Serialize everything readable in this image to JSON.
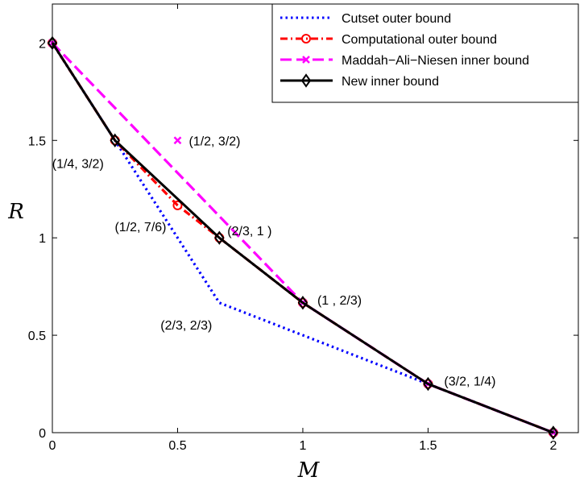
{
  "chart_data": {
    "type": "line",
    "title": "",
    "xlabel": "M",
    "ylabel": "R",
    "xlim": [
      0,
      2.1
    ],
    "ylim": [
      0,
      2.2
    ],
    "xticks": [
      "0",
      "0.5",
      "1",
      "1.5",
      "2"
    ],
    "yticks": [
      "0",
      "0.5",
      "1",
      "1.5",
      "2"
    ],
    "grid": false,
    "legend_position": "top-right",
    "series": [
      {
        "name": "Cutset outer bound",
        "color": "#0000ff",
        "style": "dotted",
        "marker": "none",
        "x": [
          0,
          0.25,
          0.6667,
          1.5,
          2
        ],
        "y": [
          2,
          1.5,
          0.6667,
          0.25,
          0
        ]
      },
      {
        "name": "Computational outer bound",
        "color": "#ff0000",
        "style": "dashdot",
        "marker": "circle",
        "x": [
          0,
          0.25,
          0.5,
          0.6667,
          1,
          1.5,
          2
        ],
        "y": [
          2,
          1.5,
          1.1667,
          1,
          0.6667,
          0.25,
          0
        ]
      },
      {
        "name": "Maddah−Ali−Niesen inner bound",
        "color": "#ff00ff",
        "style": "dashed",
        "marker": "x",
        "x": [
          0,
          1,
          1.5,
          2
        ],
        "y": [
          2,
          0.6667,
          0.25,
          0
        ],
        "extra_points": [
          {
            "x": 0.5,
            "y": 1.5
          }
        ]
      },
      {
        "name": "New inner bound",
        "color": "#000000",
        "style": "solid",
        "marker": "diamond",
        "x": [
          0,
          0.25,
          0.6667,
          1,
          1.5,
          2
        ],
        "y": [
          2,
          1.5,
          1,
          0.6667,
          0.25,
          0
        ]
      }
    ],
    "annotations": [
      {
        "text": "(1/2, 3/2)",
        "x": 0.5,
        "y": 1.5
      },
      {
        "text": "(1/4, 3/2)",
        "x": 0.25,
        "y": 1.5
      },
      {
        "text": "(1/2, 7/6)",
        "x": 0.5,
        "y": 1.1667
      },
      {
        "text": "(2/3, 1  )",
        "x": 0.6667,
        "y": 1
      },
      {
        "text": "(1  , 2/3)",
        "x": 1,
        "y": 0.6667
      },
      {
        "text": "(2/3, 2/3)",
        "x": 0.6667,
        "y": 0.6667
      },
      {
        "text": "(3/2, 1/4)",
        "x": 1.5,
        "y": 0.25
      }
    ]
  }
}
